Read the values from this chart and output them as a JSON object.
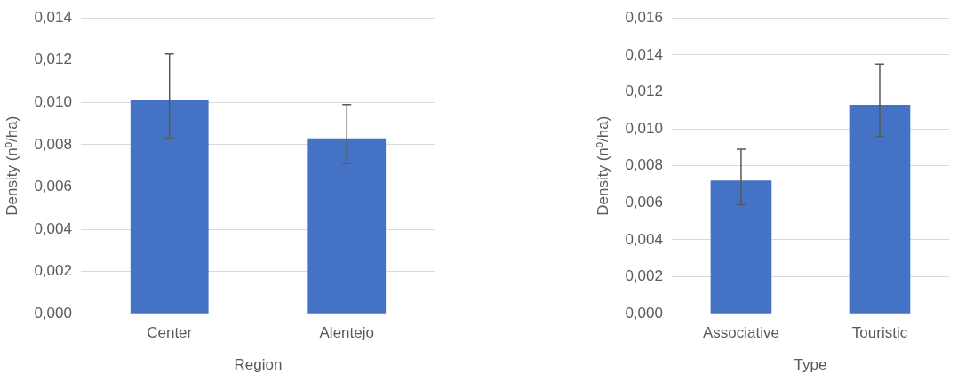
{
  "chart_data": [
    {
      "type": "bar",
      "xlabel": "Region",
      "ylabel": "Density (nº/ha)",
      "categories": [
        "Center",
        "Alentejo"
      ],
      "values": [
        0.0101,
        0.0083
      ],
      "color": "#4472c4",
      "errors": [
        [
          0.0083,
          0.0123
        ],
        [
          0.0071,
          0.0099
        ]
      ],
      "ylim": [
        0,
        0.014
      ],
      "yticks": [
        {
          "value": 0,
          "label": "0,000"
        },
        {
          "value": 0.002,
          "label": "0,002"
        },
        {
          "value": 0.004,
          "label": "0,004"
        },
        {
          "value": 0.006,
          "label": "0,006"
        },
        {
          "value": 0.008,
          "label": "0,008"
        },
        {
          "value": 0.01,
          "label": "0,010"
        },
        {
          "value": 0.012,
          "label": "0,012"
        },
        {
          "value": 0.014,
          "label": "0,014"
        }
      ],
      "grid": "y",
      "legend": false
    },
    {
      "type": "bar",
      "xlabel": "Type",
      "ylabel": "Density (nº/ha)",
      "categories": [
        "Associative",
        "Touristic"
      ],
      "values": [
        0.0072,
        0.0113
      ],
      "color": "#4472c4",
      "errors": [
        [
          0.0059,
          0.0089
        ],
        [
          0.0096,
          0.0135
        ]
      ],
      "ylim": [
        0,
        0.016
      ],
      "yticks": [
        {
          "value": 0,
          "label": "0,000"
        },
        {
          "value": 0.002,
          "label": "0,002"
        },
        {
          "value": 0.004,
          "label": "0,004"
        },
        {
          "value": 0.006,
          "label": "0,006"
        },
        {
          "value": 0.008,
          "label": "0,008"
        },
        {
          "value": 0.01,
          "label": "0,010"
        },
        {
          "value": 0.012,
          "label": "0,012"
        },
        {
          "value": 0.014,
          "label": "0,014"
        },
        {
          "value": 0.016,
          "label": "0,016"
        }
      ],
      "grid": "y",
      "legend": false
    }
  ]
}
